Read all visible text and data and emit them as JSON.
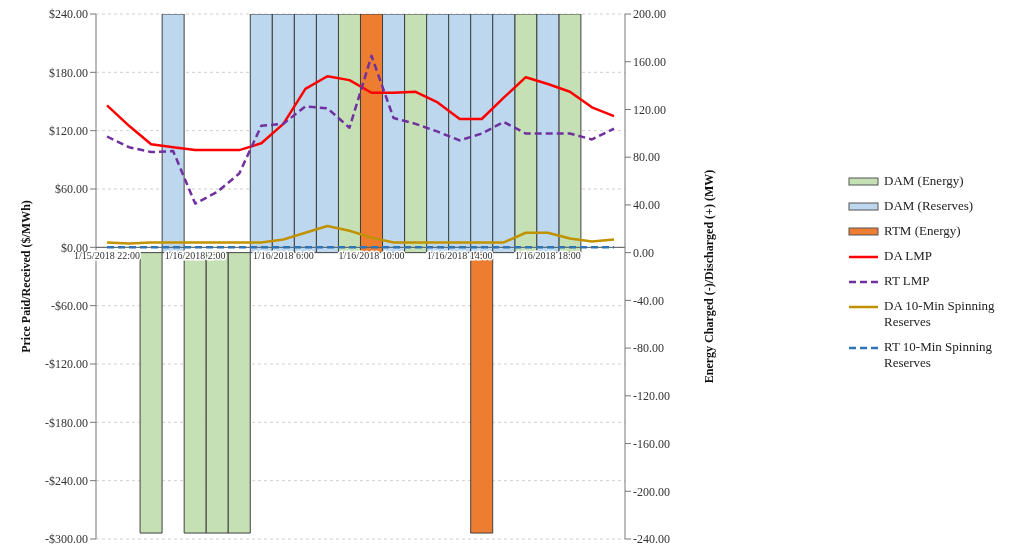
{
  "chart_data": {
    "type": "bar",
    "xlabel": null,
    "ylabel": "Price Paid/Received ($/MWh)",
    "y2label": "Energy Charged (-)/Discharged (+) (MW)",
    "categories": [
      "1/15/2018 22:00",
      null,
      null,
      null,
      "1/16/2018 2:00",
      null,
      null,
      null,
      "1/16/2018 6:00",
      null,
      null,
      null,
      "1/16/2018 10:00",
      null,
      null,
      null,
      "1/16/2018 14:00",
      null,
      null,
      null,
      "1/16/2018 18:00",
      null,
      null,
      null
    ],
    "stacked": true,
    "series": [
      {
        "name": "DAM (Energy)",
        "axis": "y2",
        "color": "#c5e0b4",
        "values": [
          null,
          null,
          -235,
          null,
          -235,
          -235,
          -235,
          null,
          null,
          null,
          null,
          200,
          null,
          null,
          200,
          null,
          null,
          null,
          null,
          200,
          null,
          200,
          null,
          null
        ]
      },
      {
        "name": "DAM (Reserves)",
        "axis": "y2",
        "color": "#bdd7ee",
        "values": [
          null,
          null,
          null,
          200,
          null,
          null,
          null,
          200,
          200,
          200,
          200,
          null,
          null,
          200,
          null,
          200,
          200,
          200,
          200,
          null,
          200,
          null,
          null,
          null
        ]
      },
      {
        "name": "RTM (Energy)",
        "axis": "y2",
        "color": "#ed7d31",
        "values": [
          null,
          null,
          null,
          null,
          null,
          null,
          null,
          null,
          null,
          null,
          null,
          null,
          200,
          null,
          null,
          null,
          null,
          -235,
          null,
          null,
          null,
          null,
          null,
          null
        ]
      },
      {
        "name": "DA LMP",
        "type": "line",
        "axis": "y",
        "color": "#ff0000",
        "line_style": "solid",
        "values": [
          146,
          125,
          106,
          103,
          100,
          100,
          100,
          107,
          127,
          163,
          176,
          172,
          159,
          159,
          160,
          149,
          132,
          132,
          154,
          175,
          168,
          160,
          144,
          135
        ]
      },
      {
        "name": "RT LMP",
        "type": "line",
        "axis": "y",
        "color": "#7030a0",
        "line_style": "dashed",
        "values": [
          114,
          103,
          98,
          99,
          45,
          57,
          76,
          125,
          127,
          145,
          143,
          123,
          197,
          133,
          127,
          119,
          110,
          117,
          129,
          117,
          117,
          117,
          111,
          122
        ]
      },
      {
        "name": "DA 10-Min Spinning Reserves",
        "type": "line",
        "axis": "y",
        "color": "#c09200",
        "line_style": "solid",
        "values": [
          5,
          4,
          5,
          5,
          5,
          5,
          5,
          5,
          8,
          15,
          22,
          17,
          10,
          5,
          5,
          5,
          5,
          5,
          5,
          15,
          15,
          9,
          6,
          8
        ]
      },
      {
        "name": "RT 10-Min Spinning Reserves",
        "type": "line",
        "axis": "y",
        "color": "#2e75b6",
        "line_style": "dashed",
        "values": [
          0,
          0,
          0,
          0,
          0,
          0,
          0,
          0,
          0,
          0,
          0,
          0,
          0,
          0,
          0,
          0,
          0,
          0,
          0,
          0,
          0,
          0,
          0,
          0
        ]
      }
    ],
    "ylim": [
      -300,
      240
    ],
    "yticks": [
      {
        "value": -300,
        "label": "-$300.00"
      },
      {
        "value": -240,
        "label": "-$240.00"
      },
      {
        "value": -180,
        "label": "-$180.00"
      },
      {
        "value": -120,
        "label": "-$120.00"
      },
      {
        "value": -60,
        "label": "-$60.00"
      },
      {
        "value": 0,
        "label": "$0.00"
      },
      {
        "value": 60,
        "label": "$60.00"
      },
      {
        "value": 120,
        "label": "$120.00"
      },
      {
        "value": 180,
        "label": "$180.00"
      },
      {
        "value": 240,
        "label": "$240.00"
      }
    ],
    "y2lim": [
      -240,
      200
    ],
    "y2ticks": [
      {
        "value": -240,
        "label": "-240.00"
      },
      {
        "value": -200,
        "label": "-200.00"
      },
      {
        "value": -160,
        "label": "-160.00"
      },
      {
        "value": -120,
        "label": "-120.00"
      },
      {
        "value": -80,
        "label": "-80.00"
      },
      {
        "value": -40,
        "label": "-40.00"
      },
      {
        "value": 0,
        "label": "0.00"
      },
      {
        "value": 40,
        "label": "40.00"
      },
      {
        "value": 80,
        "label": "80.00"
      },
      {
        "value": 120,
        "label": "120.00"
      },
      {
        "value": 160,
        "label": "160.00"
      },
      {
        "value": 200,
        "label": "200.00"
      }
    ],
    "grid": "y",
    "legend": "right"
  }
}
